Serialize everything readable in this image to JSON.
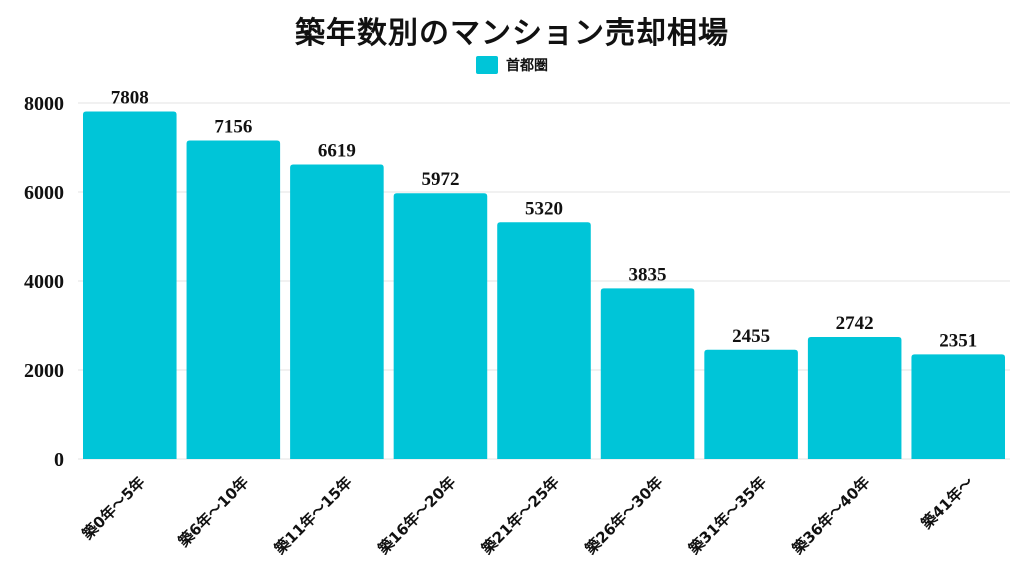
{
  "chart_data": {
    "type": "bar",
    "title": "築年数別のマンション売却相場",
    "categories": [
      "築0年～5年",
      "築6年～10年",
      "築11年～15年",
      "築16年～20年",
      "築21年～25年",
      "築26年～30年",
      "築31年～35年",
      "築36年～40年",
      "築41年～"
    ],
    "series": [
      {
        "name": "首都圏",
        "values": [
          7808,
          7156,
          6619,
          5972,
          5320,
          3835,
          2455,
          2742,
          2351
        ]
      }
    ],
    "yticks": [
      0,
      2000,
      4000,
      6000,
      8000
    ],
    "ylim": [
      0,
      8000
    ],
    "grid": true,
    "legend": "top-center",
    "bar_color": "#00C5D8"
  }
}
